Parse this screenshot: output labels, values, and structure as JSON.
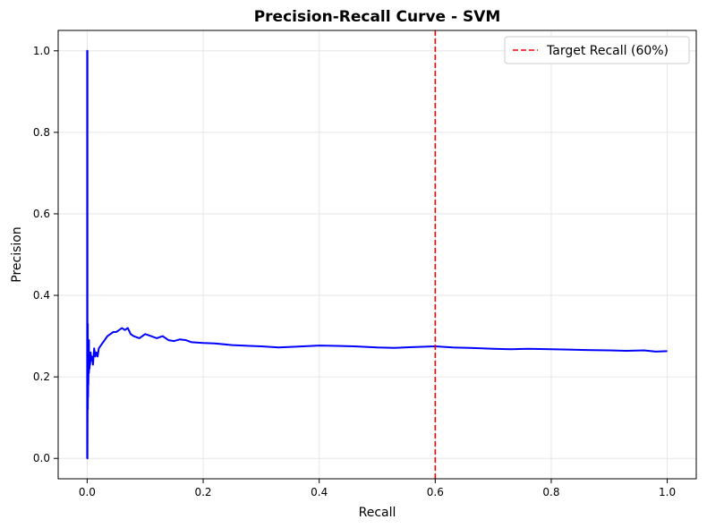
{
  "chart_data": {
    "type": "line",
    "title": "Precision-Recall Curve - SVM",
    "xlabel": "Recall",
    "ylabel": "Precision",
    "xlim": [
      -0.05,
      1.05
    ],
    "ylim": [
      -0.05,
      1.05
    ],
    "xticks": [
      0.0,
      0.2,
      0.4,
      0.6,
      0.8,
      1.0
    ],
    "yticks": [
      0.0,
      0.2,
      0.4,
      0.6,
      0.8,
      1.0
    ],
    "xtick_labels": [
      "0.0",
      "0.2",
      "0.4",
      "0.6",
      "0.8",
      "1.0"
    ],
    "ytick_labels": [
      "0.0",
      "0.2",
      "0.4",
      "0.6",
      "0.8",
      "1.0"
    ],
    "grid": true,
    "legend_position": "top-right",
    "series": [
      {
        "color": "#0000ff",
        "x": [
          0.0,
          0.0,
          0.0005,
          0.0005,
          0.001,
          0.001,
          0.0015,
          0.0015,
          0.002,
          0.002,
          0.003,
          0.003,
          0.004,
          0.004,
          0.005,
          0.005,
          0.006,
          0.007,
          0.008,
          0.01,
          0.012,
          0.014,
          0.016,
          0.018,
          0.02,
          0.025,
          0.03,
          0.035,
          0.04,
          0.045,
          0.05,
          0.055,
          0.06,
          0.065,
          0.07,
          0.075,
          0.08,
          0.09,
          0.1,
          0.11,
          0.12,
          0.13,
          0.14,
          0.15,
          0.16,
          0.17,
          0.18,
          0.2,
          0.22,
          0.25,
          0.28,
          0.3,
          0.33,
          0.36,
          0.4,
          0.43,
          0.46,
          0.5,
          0.53,
          0.56,
          0.6,
          0.63,
          0.66,
          0.7,
          0.73,
          0.76,
          0.8,
          0.83,
          0.86,
          0.9,
          0.93,
          0.96,
          0.98,
          1.0
        ],
        "y": [
          0.0,
          1.0,
          1.0,
          0.0,
          0.33,
          0.12,
          0.25,
          0.15,
          0.22,
          0.18,
          0.29,
          0.21,
          0.26,
          0.22,
          0.25,
          0.23,
          0.26,
          0.24,
          0.25,
          0.23,
          0.27,
          0.25,
          0.26,
          0.25,
          0.27,
          0.28,
          0.29,
          0.3,
          0.305,
          0.31,
          0.31,
          0.315,
          0.32,
          0.315,
          0.32,
          0.305,
          0.3,
          0.295,
          0.305,
          0.3,
          0.295,
          0.3,
          0.29,
          0.288,
          0.292,
          0.29,
          0.285,
          0.283,
          0.282,
          0.278,
          0.276,
          0.275,
          0.272,
          0.274,
          0.277,
          0.276,
          0.275,
          0.272,
          0.271,
          0.273,
          0.275,
          0.272,
          0.271,
          0.269,
          0.268,
          0.269,
          0.268,
          0.267,
          0.266,
          0.265,
          0.264,
          0.265,
          0.262,
          0.263
        ]
      }
    ],
    "reference_lines": [
      {
        "orientation": "vertical",
        "x": 0.6,
        "color": "#ff0000",
        "style": "dashed",
        "label": "Target Recall (60%)"
      }
    ]
  }
}
